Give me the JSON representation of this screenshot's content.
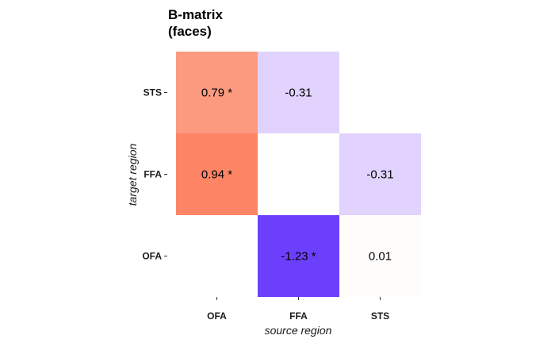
{
  "chart_data": {
    "type": "heatmap",
    "title_lines": [
      "B-matrix",
      "(faces)"
    ],
    "xlabel": "source region",
    "ylabel": "target region",
    "x_categories": [
      "OFA",
      "FFA",
      "STS"
    ],
    "y_categories": [
      "STS",
      "FFA",
      "OFA"
    ],
    "cells": [
      {
        "target": "STS",
        "source": "OFA",
        "value": 0.79,
        "label": "0.79 *",
        "color": "#fc9a7f"
      },
      {
        "target": "STS",
        "source": "FFA",
        "value": -0.31,
        "label": "-0.31",
        "color": "#e1d3fd"
      },
      {
        "target": "FFA",
        "source": "OFA",
        "value": 0.94,
        "label": "0.94 *",
        "color": "#fd8566"
      },
      {
        "target": "FFA",
        "source": "STS",
        "value": -0.31,
        "label": "-0.31",
        "color": "#e1d3fd"
      },
      {
        "target": "OFA",
        "source": "FFA",
        "value": -1.23,
        "label": "-1.23 *",
        "color": "#6c3ffd"
      },
      {
        "target": "OFA",
        "source": "STS",
        "value": 0.01,
        "label": "0.01",
        "color": "#fffdfc"
      }
    ],
    "legend": "none",
    "grid": false
  }
}
